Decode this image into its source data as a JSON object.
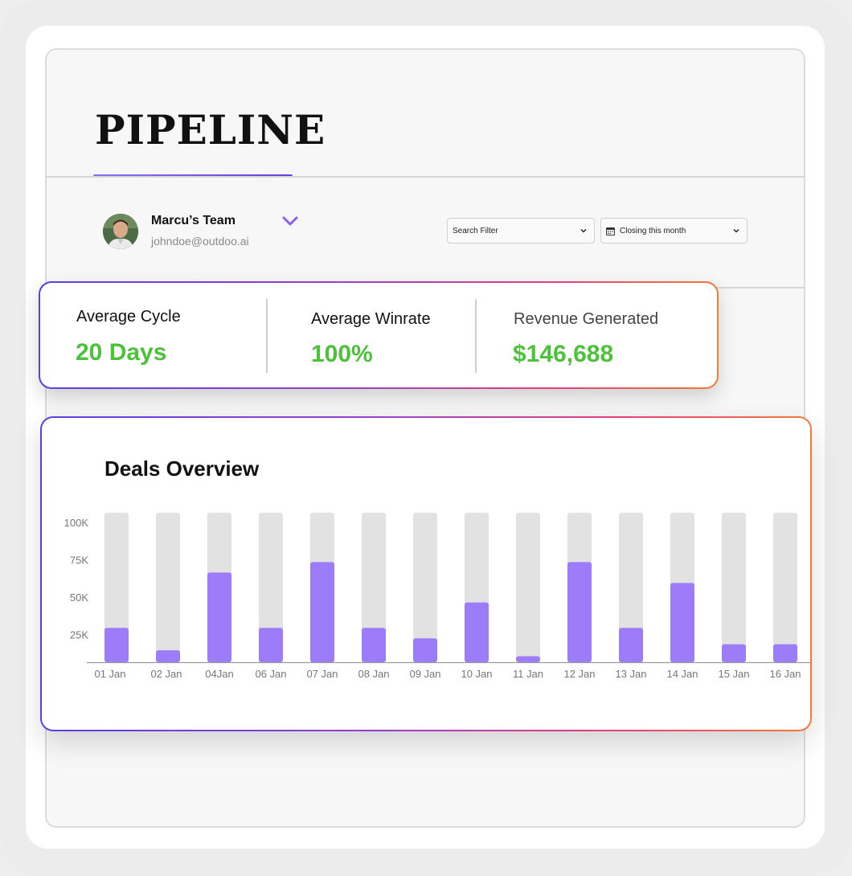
{
  "header": {
    "title": "PIPELINE"
  },
  "team": {
    "name": "Marcu’s Team",
    "email": "johndoe@outdoo.ai"
  },
  "filters": {
    "search_label": "Search Filter",
    "closing_label": "Closing this month"
  },
  "stats": {
    "cycle_label": "Average Cycle",
    "cycle_value": "20 Days",
    "winrate_label": "Average Winrate",
    "winrate_value": "100%",
    "revenue_label": "Revenue Generated",
    "revenue_value": "$146,688"
  },
  "colors": {
    "bar": "#9d7cf9",
    "track": "#e2e2e2",
    "value_green": "#4cc13a",
    "accent_purple": "#8b5cf6"
  },
  "chart_data": {
    "type": "bar",
    "title": "Deals Overview",
    "categories": [
      "01 Jan",
      "02 Jan",
      "04Jan",
      "06 Jan",
      "07 Jan",
      "08 Jan",
      "09 Jan",
      "10 Jan",
      "11 Jan",
      "12 Jan",
      "13 Jan",
      "14 Jan",
      "15 Jan",
      "16 Jan"
    ],
    "values": [
      23000,
      8000,
      60000,
      23000,
      67000,
      23000,
      16000,
      40000,
      4000,
      67000,
      23000,
      53000,
      12000,
      12000
    ],
    "max_track": 100000,
    "yticks": [
      {
        "value": 100000,
        "label": "100K"
      },
      {
        "value": 75000,
        "label": "75K"
      },
      {
        "value": 50000,
        "label": "50K"
      },
      {
        "value": 25000,
        "label": "25K"
      }
    ],
    "ylim": [
      0,
      100000
    ],
    "grid": false,
    "xlabel": "",
    "ylabel": ""
  }
}
